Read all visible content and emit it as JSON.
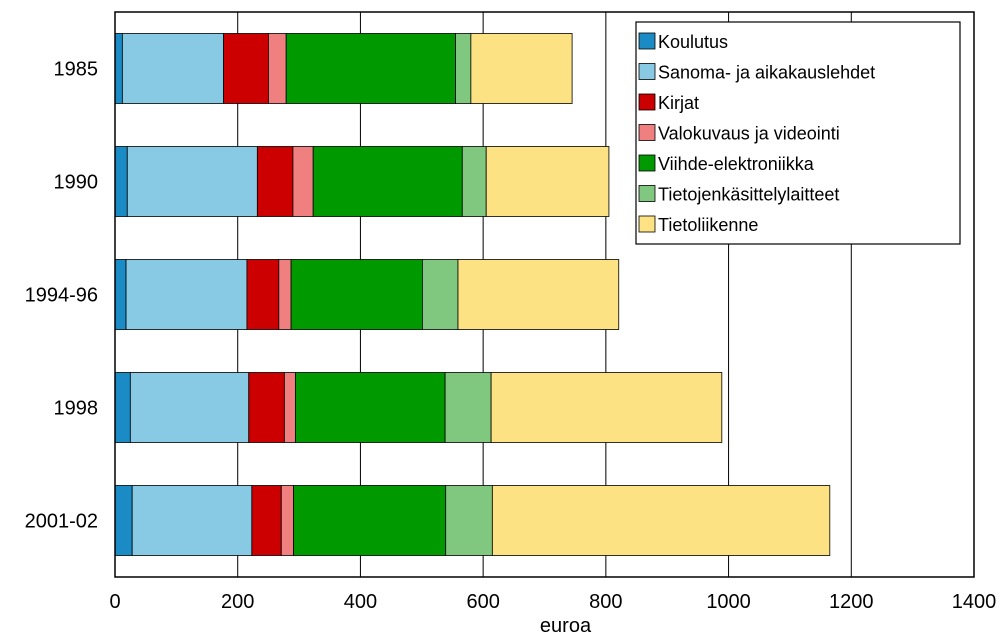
{
  "chart_data": {
    "type": "bar",
    "orientation": "horizontal",
    "stacked": true,
    "categories": [
      "1985",
      "1990",
      "1994-96",
      "1998",
      "2001-02"
    ],
    "xlabel": "euroa",
    "xlim": [
      0,
      1400
    ],
    "xticks": [
      0,
      200,
      400,
      600,
      800,
      1000,
      1200,
      1400
    ],
    "grid": "vertical",
    "legend_position": "top-right",
    "series": [
      {
        "name": "Koulutus",
        "color": "#1a8bc4",
        "values": [
          12,
          20,
          18,
          25,
          28
        ]
      },
      {
        "name": "Sanoma- ja aikakauslehdet",
        "color": "#88c9e4",
        "values": [
          165,
          212,
          197,
          193,
          195
        ]
      },
      {
        "name": "Kirjat",
        "color": "#cc0000",
        "values": [
          73,
          58,
          52,
          58,
          48
        ]
      },
      {
        "name": "Valokuvaus ja videointi",
        "color": "#f08080",
        "values": [
          29,
          33,
          20,
          18,
          20
        ]
      },
      {
        "name": "Viihde-elektroniikka",
        "color": "#009900",
        "values": [
          276,
          243,
          214,
          244,
          248
        ]
      },
      {
        "name": "Tietojenkäsittelylaitteet",
        "color": "#80c880",
        "values": [
          25,
          39,
          58,
          75,
          76
        ]
      },
      {
        "name": "Tietoliikenne",
        "color": "#fce282",
        "values": [
          165,
          200,
          262,
          376,
          550
        ]
      }
    ]
  }
}
